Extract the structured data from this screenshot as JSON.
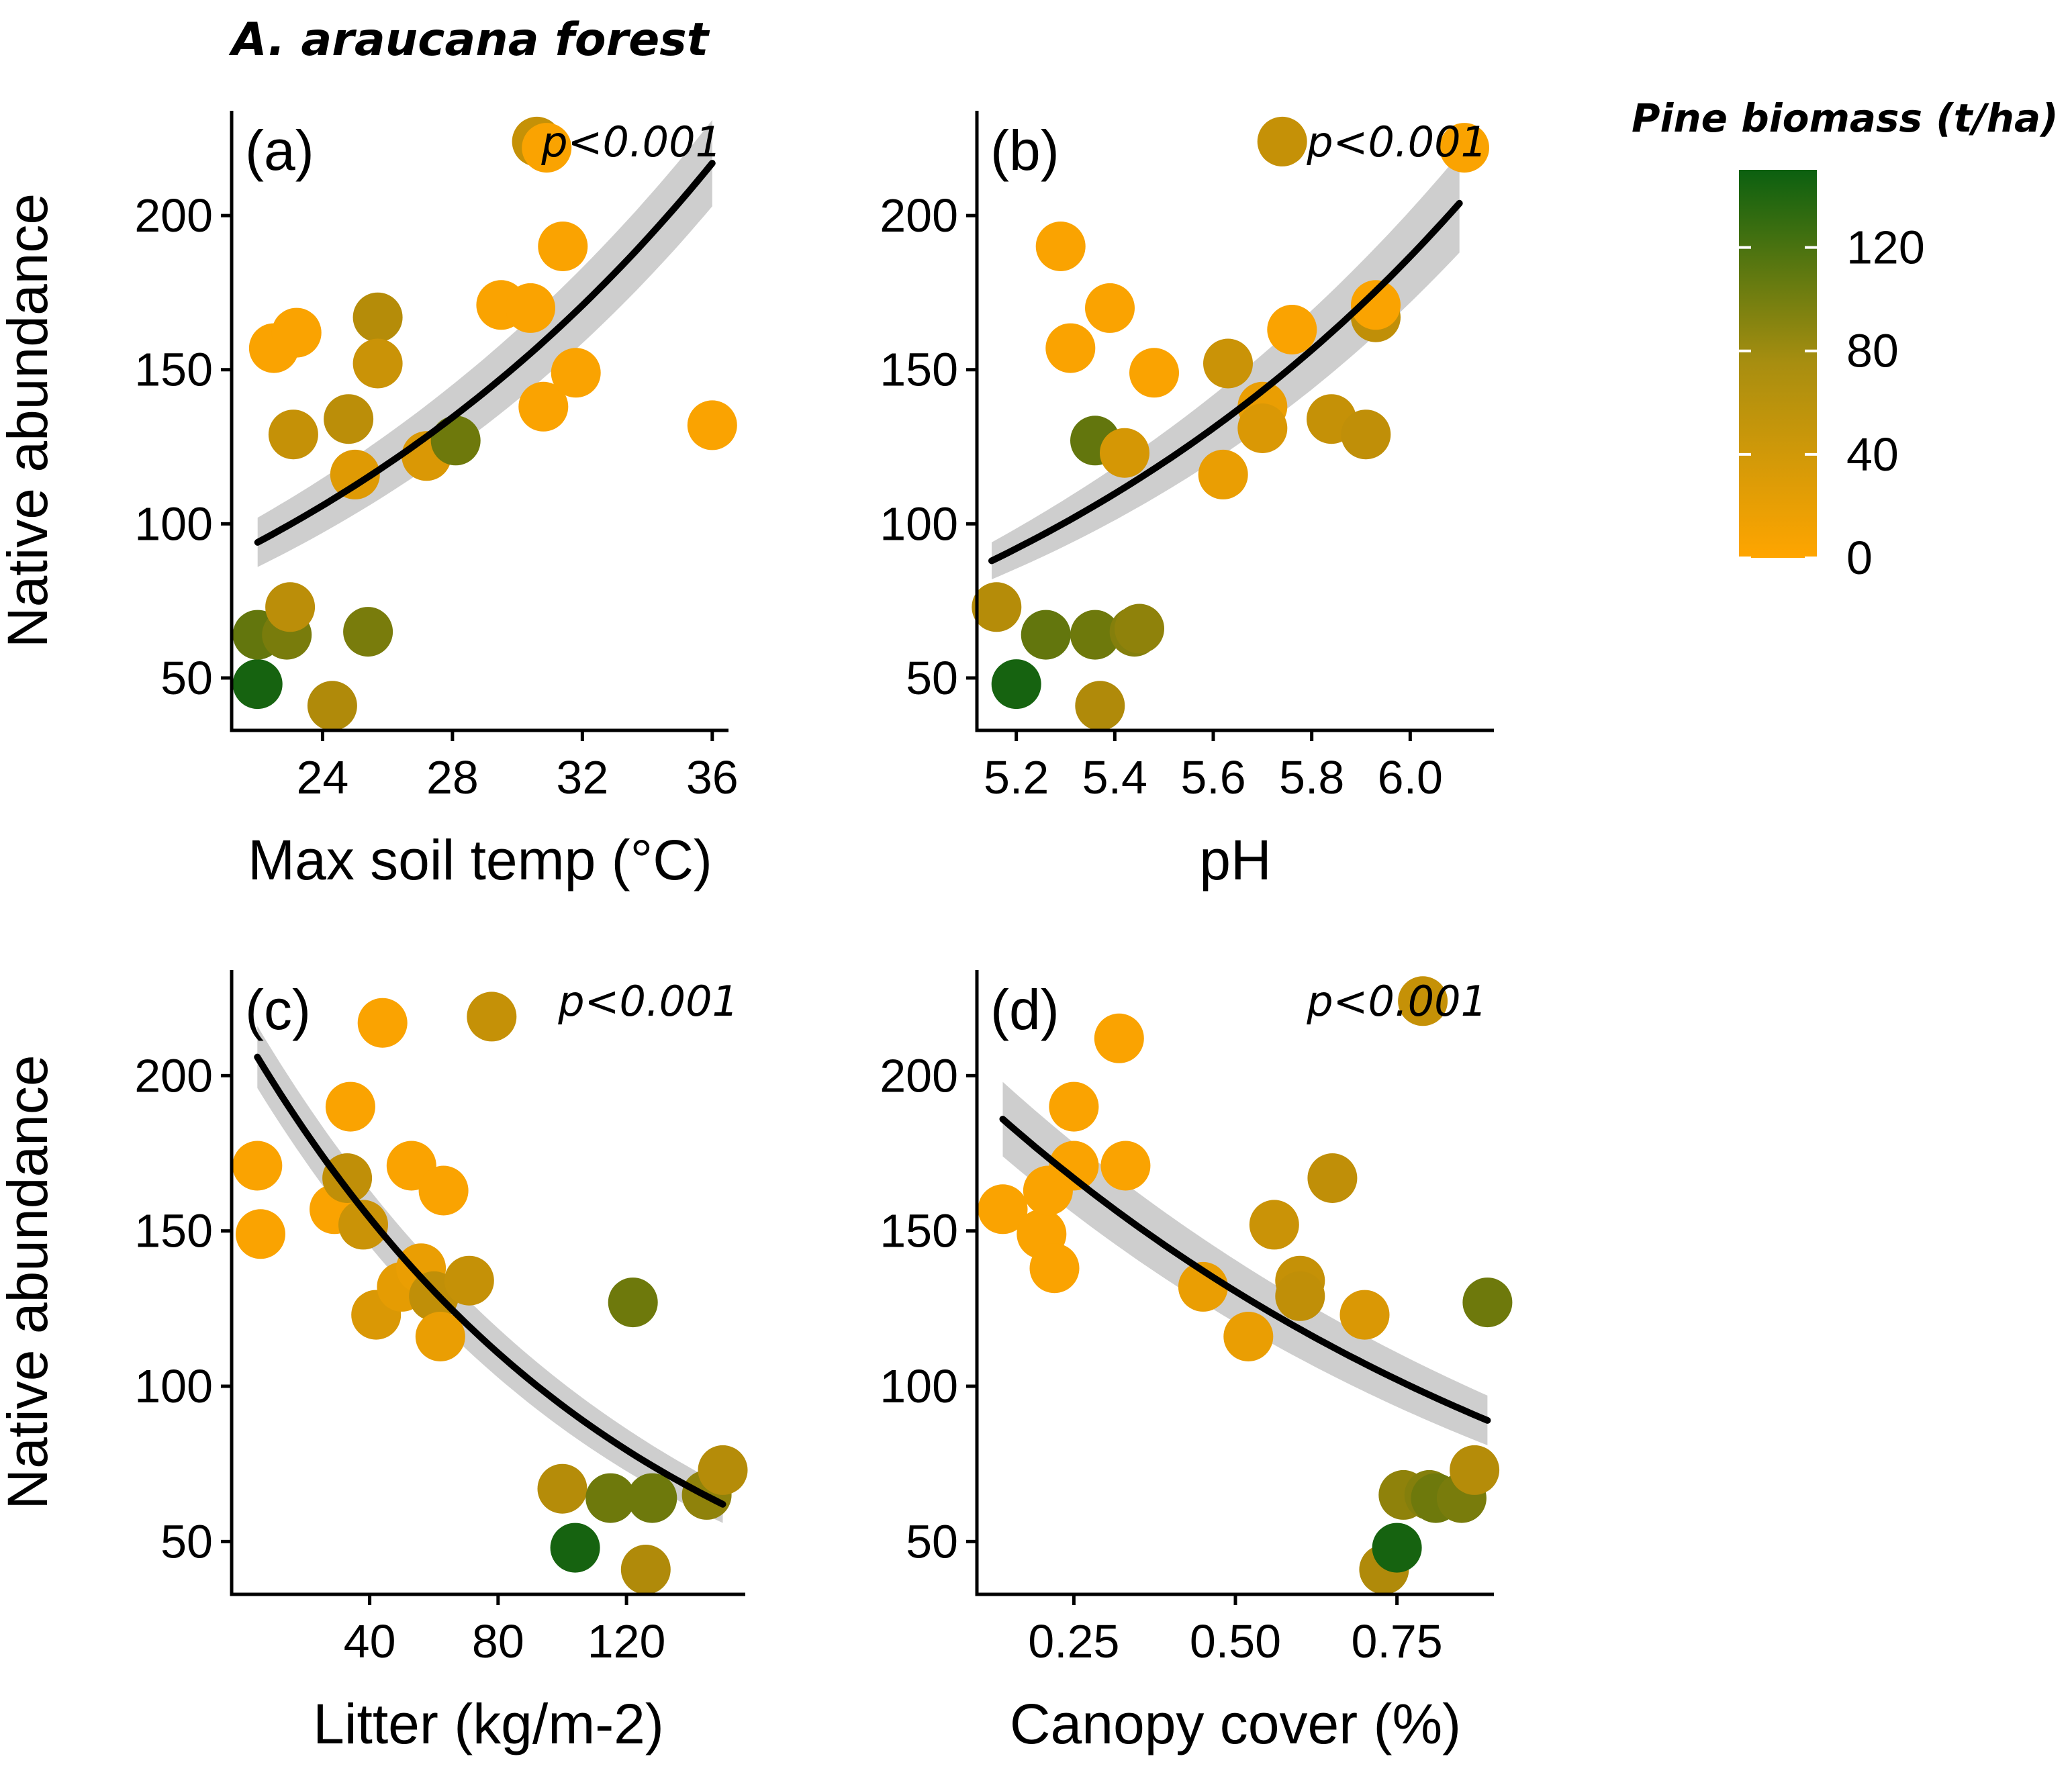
{
  "figure_title": "A. araucana forest",
  "legend": {
    "title": "Pine biomass (t/ha)",
    "ticks": [
      "0",
      "40",
      "80",
      "120"
    ],
    "tick_values": [
      0,
      40,
      80,
      120
    ],
    "range": [
      0,
      150
    ],
    "color_low": "#FFA500",
    "color_mid": "#B08A0A",
    "color_high": "#0B6010"
  },
  "chart_data": [
    {
      "type": "scatter",
      "panel": "(a)",
      "p_value": "p<0.001",
      "xlabel": "Max soil temp (°C)",
      "ylabel": "Native abundance",
      "xlim": [
        21.2,
        36.5
      ],
      "ylim": [
        33,
        234
      ],
      "xticks": [
        24,
        28,
        32,
        36
      ],
      "xtick_labels": [
        "24",
        "28",
        "32",
        "36"
      ],
      "yticks": [
        50,
        100,
        150,
        200
      ],
      "ytick_labels": [
        "50",
        "100",
        "150",
        "200"
      ],
      "fit": {
        "x0": 22.0,
        "y0": 94,
        "x1": 36.0,
        "y1": 217,
        "band0": 8,
        "band1": 14
      },
      "points": [
        {
          "x": 22.0,
          "y": 48,
          "b": 145
        },
        {
          "x": 22.0,
          "y": 64,
          "b": 110
        },
        {
          "x": 22.9,
          "y": 64,
          "b": 100
        },
        {
          "x": 23.0,
          "y": 73,
          "b": 65
        },
        {
          "x": 24.3,
          "y": 41,
          "b": 75
        },
        {
          "x": 25.4,
          "y": 65,
          "b": 100
        },
        {
          "x": 22.5,
          "y": 157,
          "b": 5
        },
        {
          "x": 23.2,
          "y": 162,
          "b": 5
        },
        {
          "x": 23.1,
          "y": 129,
          "b": 55
        },
        {
          "x": 24.8,
          "y": 134,
          "b": 65
        },
        {
          "x": 25.0,
          "y": 116,
          "b": 30
        },
        {
          "x": 25.7,
          "y": 167,
          "b": 70
        },
        {
          "x": 25.7,
          "y": 152,
          "b": 50
        },
        {
          "x": 27.2,
          "y": 122,
          "b": 35
        },
        {
          "x": 28.1,
          "y": 127,
          "b": 105
        },
        {
          "x": 29.5,
          "y": 171,
          "b": 5
        },
        {
          "x": 30.4,
          "y": 170,
          "b": 5
        },
        {
          "x": 30.6,
          "y": 224,
          "b": 55
        },
        {
          "x": 30.9,
          "y": 222,
          "b": 5
        },
        {
          "x": 31.4,
          "y": 190,
          "b": 5
        },
        {
          "x": 30.8,
          "y": 138,
          "b": 5
        },
        {
          "x": 31.8,
          "y": 149,
          "b": 5
        },
        {
          "x": 36.0,
          "y": 132,
          "b": 5
        }
      ]
    },
    {
      "type": "scatter",
      "panel": "(b)",
      "p_value": "p<0.001",
      "xlabel": "pH",
      "ylabel": "",
      "xlim": [
        5.12,
        6.17
      ],
      "ylim": [
        33,
        234
      ],
      "xticks": [
        5.2,
        5.4,
        5.6,
        5.8,
        6.0
      ],
      "xtick_labels": [
        "5.2",
        "5.4",
        "5.6",
        "5.8",
        "6.0"
      ],
      "yticks": [
        50,
        100,
        150,
        200
      ],
      "ytick_labels": [
        "50",
        "100",
        "150",
        "200"
      ],
      "fit": {
        "x0": 5.15,
        "y0": 88,
        "x1": 6.1,
        "y1": 204,
        "band0": 6,
        "band1": 16
      },
      "points": [
        {
          "x": 5.2,
          "y": 48,
          "b": 145
        },
        {
          "x": 5.16,
          "y": 73,
          "b": 70
        },
        {
          "x": 5.26,
          "y": 64,
          "b": 110
        },
        {
          "x": 5.36,
          "y": 64,
          "b": 105
        },
        {
          "x": 5.44,
          "y": 65,
          "b": 95
        },
        {
          "x": 5.45,
          "y": 66,
          "b": 90
        },
        {
          "x": 5.37,
          "y": 41,
          "b": 75
        },
        {
          "x": 5.36,
          "y": 127,
          "b": 110
        },
        {
          "x": 5.42,
          "y": 123,
          "b": 40
        },
        {
          "x": 5.29,
          "y": 190,
          "b": 5
        },
        {
          "x": 5.31,
          "y": 157,
          "b": 5
        },
        {
          "x": 5.39,
          "y": 170,
          "b": 5
        },
        {
          "x": 5.48,
          "y": 149,
          "b": 5
        },
        {
          "x": 5.62,
          "y": 116,
          "b": 20
        },
        {
          "x": 5.63,
          "y": 152,
          "b": 50
        },
        {
          "x": 5.7,
          "y": 138,
          "b": 20
        },
        {
          "x": 5.7,
          "y": 131,
          "b": 35
        },
        {
          "x": 5.76,
          "y": 163,
          "b": 5
        },
        {
          "x": 5.74,
          "y": 224,
          "b": 55
        },
        {
          "x": 5.84,
          "y": 134,
          "b": 55
        },
        {
          "x": 5.91,
          "y": 129,
          "b": 60
        },
        {
          "x": 5.93,
          "y": 167,
          "b": 60
        },
        {
          "x": 5.93,
          "y": 171,
          "b": 5
        },
        {
          "x": 6.11,
          "y": 222,
          "b": 5
        }
      ]
    },
    {
      "type": "scatter",
      "panel": "(c)",
      "p_value": "p<0.001",
      "xlabel": "Litter (kg/m-2)",
      "ylabel": "Native abundance",
      "xlim": [
        -3,
        157
      ],
      "ylim": [
        33,
        234
      ],
      "xticks": [
        40,
        80,
        120
      ],
      "xtick_labels": [
        "40",
        "80",
        "120"
      ],
      "yticks": [
        50,
        100,
        150,
        200
      ],
      "ytick_labels": [
        "50",
        "100",
        "150",
        "200"
      ],
      "fit": {
        "x0": 5,
        "y0": 206,
        "x1": 150,
        "y1": 62,
        "band0": 10,
        "band1": 6
      },
      "points": [
        {
          "x": 5,
          "y": 171,
          "b": 5
        },
        {
          "x": 6,
          "y": 149,
          "b": 5
        },
        {
          "x": 29,
          "y": 157,
          "b": 5
        },
        {
          "x": 33,
          "y": 167,
          "b": 60
        },
        {
          "x": 34,
          "y": 190,
          "b": 5
        },
        {
          "x": 38,
          "y": 152,
          "b": 50
        },
        {
          "x": 42,
          "y": 123,
          "b": 35
        },
        {
          "x": 44,
          "y": 217,
          "b": 5
        },
        {
          "x": 50,
          "y": 132,
          "b": 25
        },
        {
          "x": 53,
          "y": 171,
          "b": 5
        },
        {
          "x": 56,
          "y": 138,
          "b": 20
        },
        {
          "x": 60,
          "y": 129,
          "b": 60
        },
        {
          "x": 62,
          "y": 116,
          "b": 20
        },
        {
          "x": 63,
          "y": 163,
          "b": 5
        },
        {
          "x": 71,
          "y": 134,
          "b": 55
        },
        {
          "x": 78,
          "y": 219,
          "b": 55
        },
        {
          "x": 100,
          "y": 67,
          "b": 70
        },
        {
          "x": 104,
          "y": 48,
          "b": 145
        },
        {
          "x": 115,
          "y": 64,
          "b": 105
        },
        {
          "x": 122,
          "y": 127,
          "b": 105
        },
        {
          "x": 126,
          "y": 41,
          "b": 75
        },
        {
          "x": 128,
          "y": 64,
          "b": 105
        },
        {
          "x": 145,
          "y": 65,
          "b": 90
        },
        {
          "x": 150,
          "y": 73,
          "b": 70
        }
      ]
    },
    {
      "type": "scatter",
      "panel": "(d)",
      "p_value": "p<0.001",
      "xlabel": "Canopy cover (%)",
      "ylabel": "",
      "xlim": [
        0.1,
        0.9
      ],
      "ylim": [
        33,
        234
      ],
      "xticks": [
        0.25,
        0.5,
        0.75
      ],
      "xtick_labels": [
        "0.25",
        "0.50",
        "0.75"
      ],
      "yticks": [
        50,
        100,
        150,
        200
      ],
      "ytick_labels": [
        "50",
        "100",
        "150",
        "200"
      ],
      "fit": {
        "x0": 0.14,
        "y0": 186,
        "x1": 0.89,
        "y1": 89,
        "band0": 12,
        "band1": 8
      },
      "points": [
        {
          "x": 0.14,
          "y": 157,
          "b": 5
        },
        {
          "x": 0.2,
          "y": 149,
          "b": 5
        },
        {
          "x": 0.21,
          "y": 163,
          "b": 5
        },
        {
          "x": 0.22,
          "y": 138,
          "b": 5
        },
        {
          "x": 0.25,
          "y": 171,
          "b": 5
        },
        {
          "x": 0.25,
          "y": 190,
          "b": 5
        },
        {
          "x": 0.32,
          "y": 212,
          "b": 5
        },
        {
          "x": 0.33,
          "y": 171,
          "b": 5
        },
        {
          "x": 0.45,
          "y": 132,
          "b": 20
        },
        {
          "x": 0.52,
          "y": 116,
          "b": 20
        },
        {
          "x": 0.56,
          "y": 152,
          "b": 50
        },
        {
          "x": 0.6,
          "y": 134,
          "b": 55
        },
        {
          "x": 0.6,
          "y": 129,
          "b": 60
        },
        {
          "x": 0.65,
          "y": 167,
          "b": 60
        },
        {
          "x": 0.7,
          "y": 123,
          "b": 35
        },
        {
          "x": 0.73,
          "y": 41,
          "b": 75
        },
        {
          "x": 0.75,
          "y": 48,
          "b": 145
        },
        {
          "x": 0.76,
          "y": 65,
          "b": 90
        },
        {
          "x": 0.79,
          "y": 224,
          "b": 55
        },
        {
          "x": 0.8,
          "y": 65,
          "b": 95
        },
        {
          "x": 0.81,
          "y": 64,
          "b": 105
        },
        {
          "x": 0.85,
          "y": 64,
          "b": 100
        },
        {
          "x": 0.87,
          "y": 73,
          "b": 70
        },
        {
          "x": 0.89,
          "y": 127,
          "b": 105
        }
      ]
    }
  ]
}
